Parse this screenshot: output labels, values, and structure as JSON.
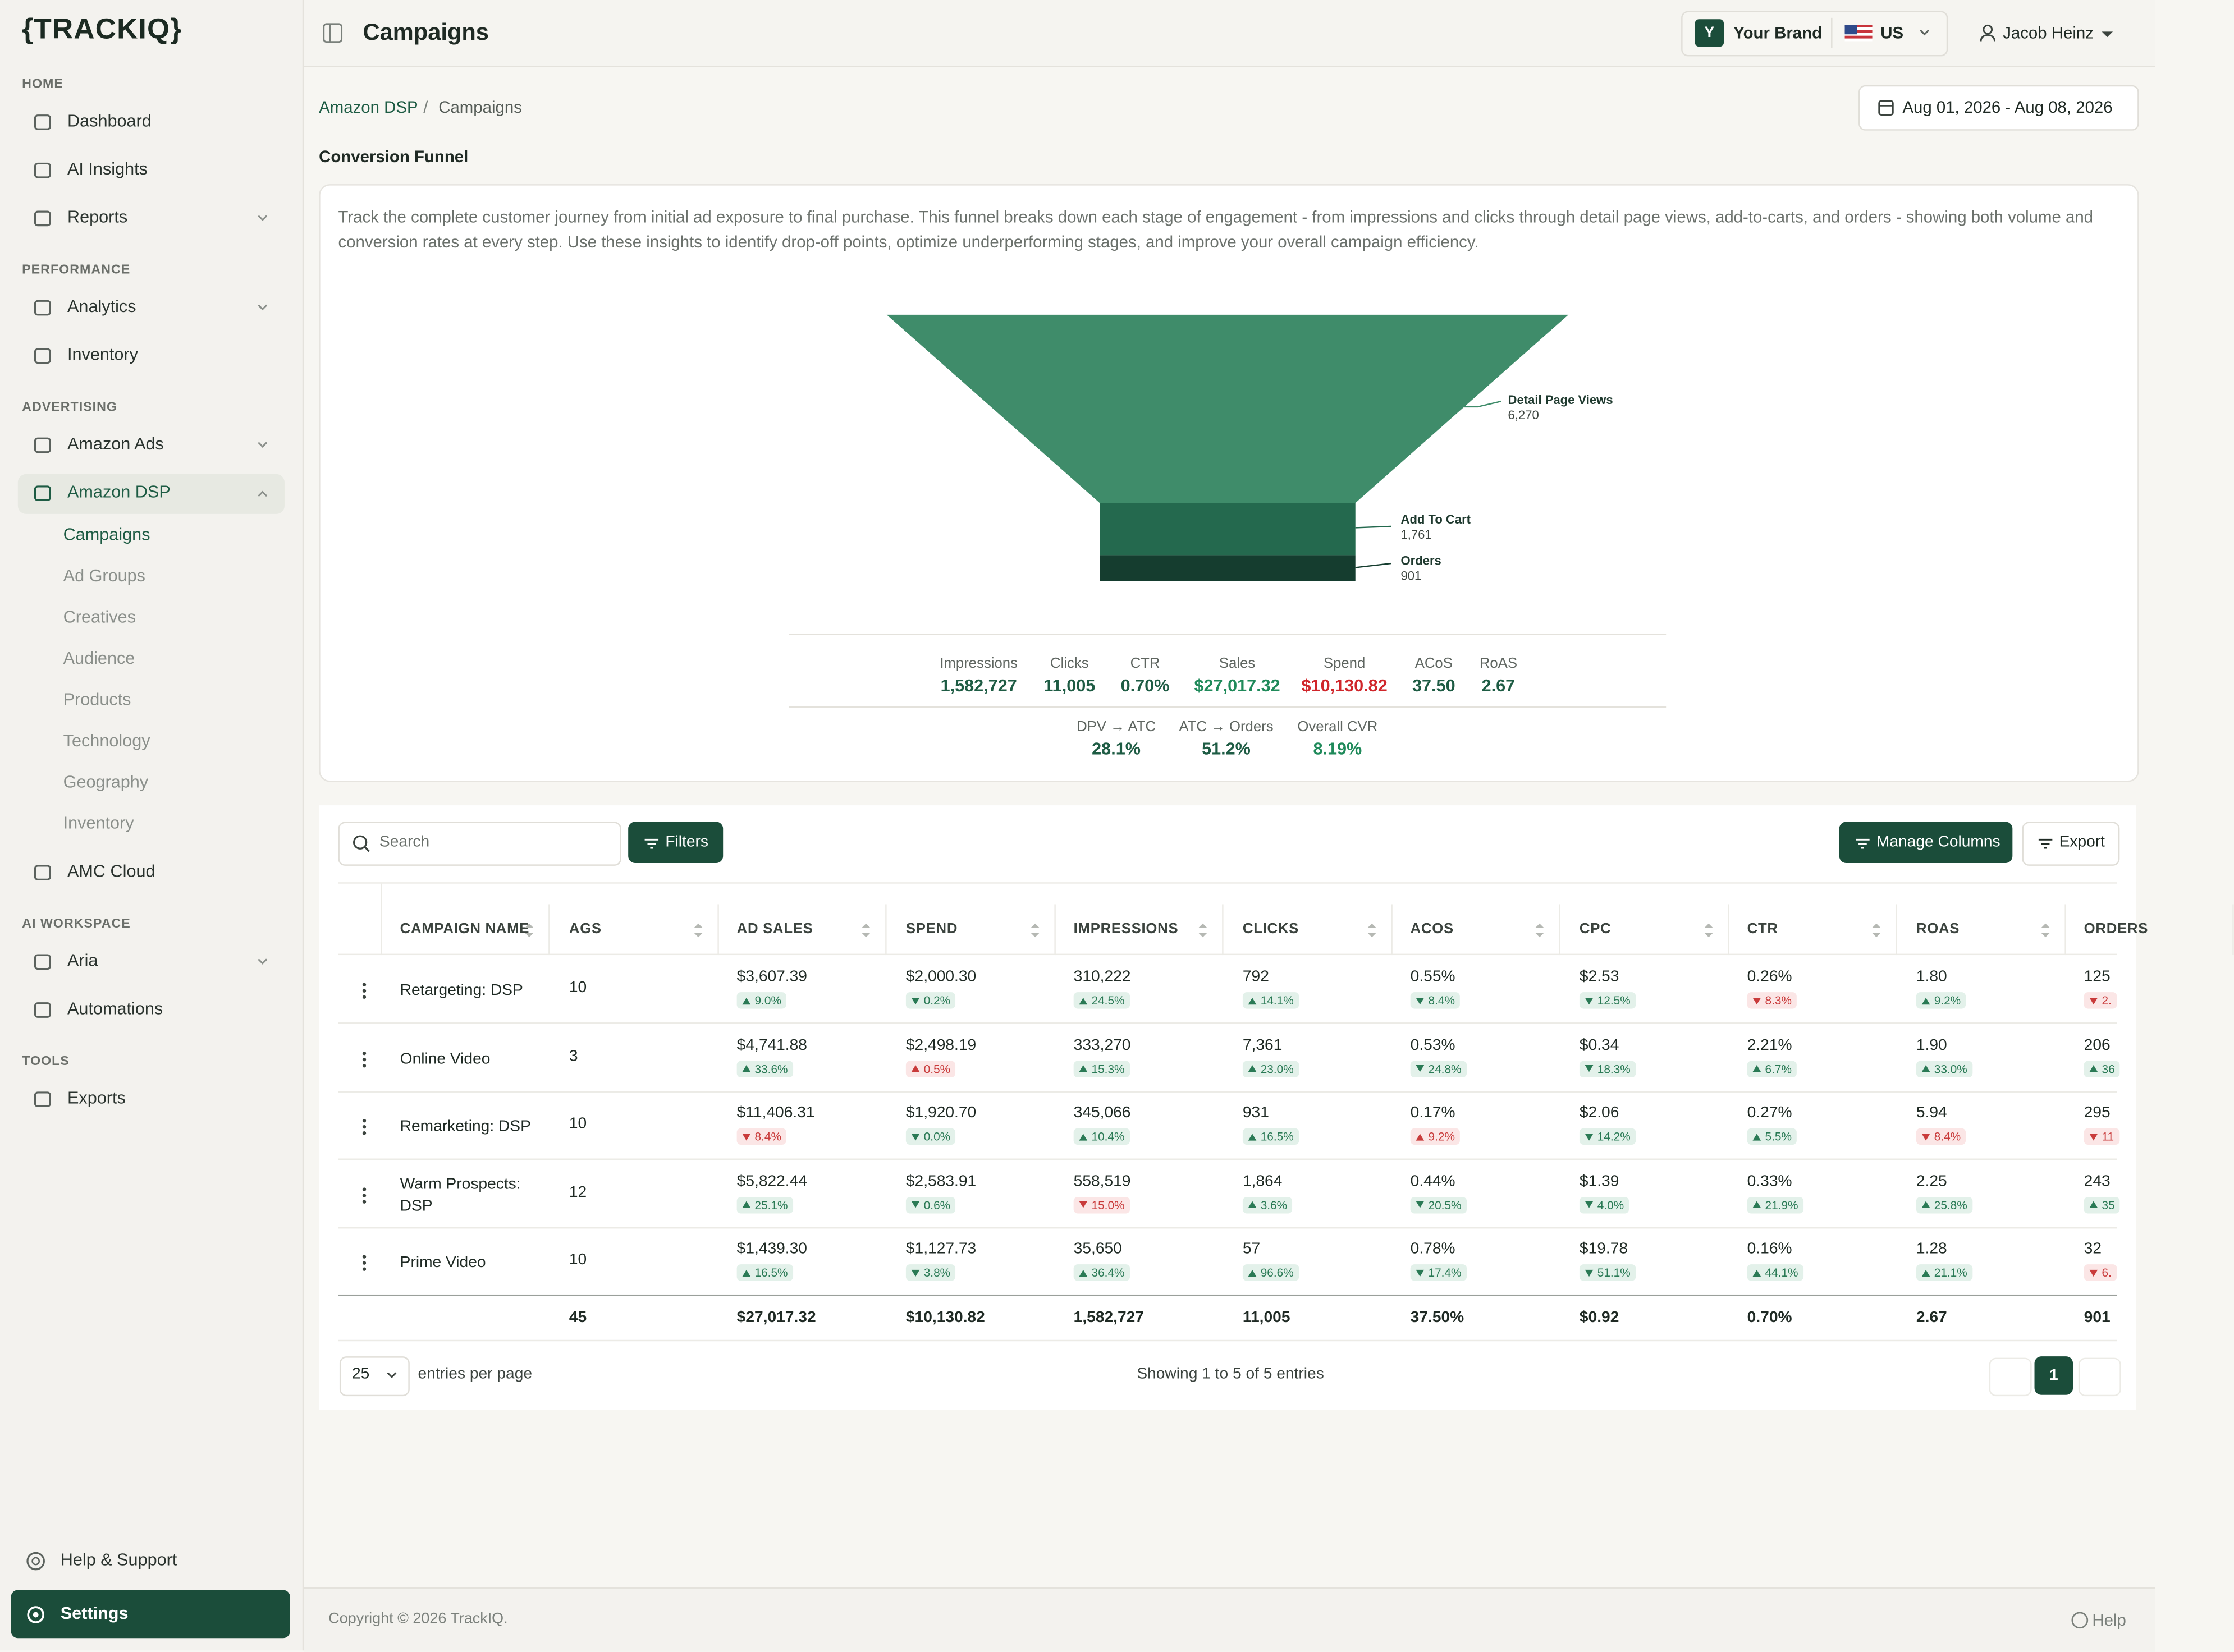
{
  "sidebar": {
    "logo": "{TRACKIQ}",
    "sections": [
      {
        "title": "HOME",
        "items": [
          {
            "label": "Dashboard"
          },
          {
            "label": "AI Insights"
          },
          {
            "label": "Reports",
            "expandable": true
          }
        ]
      },
      {
        "title": "PERFORMANCE",
        "items": [
          {
            "label": "Analytics",
            "expandable": true
          },
          {
            "label": "Inventory"
          }
        ]
      },
      {
        "title": "ADVERTISING",
        "items": [
          {
            "label": "Amazon Ads",
            "expandable": true
          },
          {
            "label": "Amazon DSP",
            "expandable": true,
            "active": true,
            "subitems": [
              "Campaigns",
              "Ad Groups",
              "Creatives",
              "Audience",
              "Products",
              "Technology",
              "Geography",
              "Inventory"
            ],
            "active_subitem": 0
          },
          {
            "label": "AMC Cloud"
          }
        ]
      },
      {
        "title": "AI WORKSPACE",
        "items": [
          {
            "label": "Aria",
            "expandable": true
          },
          {
            "label": "Automations"
          }
        ]
      },
      {
        "title": "TOOLS",
        "items": [
          {
            "label": "Exports"
          }
        ]
      }
    ],
    "help": "Help & Support",
    "settings": "Settings"
  },
  "header": {
    "title": "Campaigns",
    "brand_initial": "Y",
    "brand": "Your Brand",
    "country": "US",
    "user": "Jacob Heinz"
  },
  "breadcrumb": [
    "Amazon DSP",
    "Campaigns"
  ],
  "date_range": "Aug 01, 2026 - Aug 08, 2026",
  "funnel": {
    "title": "Conversion Funnel",
    "description": "Track the complete customer journey from initial ad exposure to final purchase. This funnel breaks down each stage of engagement - from impressions and clicks through detail page views, add-to-carts, and orders - showing both volume and conversion rates at every step. Use these insights to identify drop-off points, optimize underperforming stages, and improve your overall campaign efficiency.",
    "stages": [
      {
        "label": "Detail Page Views",
        "value": "6,270"
      },
      {
        "label": "Add To Cart",
        "value": "1,761"
      },
      {
        "label": "Orders",
        "value": "901"
      }
    ],
    "metrics": [
      {
        "label": "Impressions",
        "value": "1,582,727"
      },
      {
        "label": "Clicks",
        "value": "11,005"
      },
      {
        "label": "CTR",
        "value": "0.70%"
      },
      {
        "label": "Sales",
        "value": "$27,017.32",
        "tone": "good"
      },
      {
        "label": "Spend",
        "value": "$10,130.82",
        "tone": "bad"
      },
      {
        "label": "ACoS",
        "value": "37.50"
      },
      {
        "label": "RoAS",
        "value": "2.67"
      }
    ],
    "rates": [
      {
        "label": "DPV → ATC",
        "value": "28.1%"
      },
      {
        "label": "ATC → Orders",
        "value": "51.2%"
      },
      {
        "label": "Overall CVR",
        "value": "8.19%",
        "tone": "good"
      }
    ]
  },
  "toolbar": {
    "search_placeholder": "Search",
    "filters": "Filters",
    "manage_columns": "Manage Columns",
    "export": "Export"
  },
  "table": {
    "columns": [
      "CAMPAIGN NAME",
      "AGS",
      "AD SALES",
      "SPEND",
      "IMPRESSIONS",
      "CLICKS",
      "ACOS",
      "CPC",
      "CTR",
      "ROAS",
      "ORDERS"
    ],
    "rows": [
      {
        "name": "Retargeting: DSP",
        "ags": "10",
        "cells": [
          {
            "value": "$3,607.39",
            "change": "9.0%",
            "dir": "up",
            "tone": "good"
          },
          {
            "value": "$2,000.30",
            "change": "0.2%",
            "dir": "down",
            "tone": "good"
          },
          {
            "value": "310,222",
            "change": "24.5%",
            "dir": "up",
            "tone": "good"
          },
          {
            "value": "792",
            "change": "14.1%",
            "dir": "up",
            "tone": "good"
          },
          {
            "value": "0.55%",
            "change": "8.4%",
            "dir": "down",
            "tone": "good"
          },
          {
            "value": "$2.53",
            "change": "12.5%",
            "dir": "down",
            "tone": "good"
          },
          {
            "value": "0.26%",
            "change": "8.3%",
            "dir": "down",
            "tone": "bad"
          },
          {
            "value": "1.80",
            "change": "9.2%",
            "dir": "up",
            "tone": "good"
          },
          {
            "value": "125",
            "change": "2.",
            "dir": "down",
            "tone": "bad"
          }
        ]
      },
      {
        "name": "Online Video",
        "ags": "3",
        "cells": [
          {
            "value": "$4,741.88",
            "change": "33.6%",
            "dir": "up",
            "tone": "good"
          },
          {
            "value": "$2,498.19",
            "change": "0.5%",
            "dir": "up",
            "tone": "bad"
          },
          {
            "value": "333,270",
            "change": "15.3%",
            "dir": "up",
            "tone": "good"
          },
          {
            "value": "7,361",
            "change": "23.0%",
            "dir": "up",
            "tone": "good"
          },
          {
            "value": "0.53%",
            "change": "24.8%",
            "dir": "down",
            "tone": "good"
          },
          {
            "value": "$0.34",
            "change": "18.3%",
            "dir": "down",
            "tone": "good"
          },
          {
            "value": "2.21%",
            "change": "6.7%",
            "dir": "up",
            "tone": "good"
          },
          {
            "value": "1.90",
            "change": "33.0%",
            "dir": "up",
            "tone": "good"
          },
          {
            "value": "206",
            "change": "36",
            "dir": "up",
            "tone": "good"
          }
        ]
      },
      {
        "name": "Remarketing: DSP",
        "ags": "10",
        "cells": [
          {
            "value": "$11,406.31",
            "change": "8.4%",
            "dir": "down",
            "tone": "bad"
          },
          {
            "value": "$1,920.70",
            "change": "0.0%",
            "dir": "down",
            "tone": "good"
          },
          {
            "value": "345,066",
            "change": "10.4%",
            "dir": "up",
            "tone": "good"
          },
          {
            "value": "931",
            "change": "16.5%",
            "dir": "up",
            "tone": "good"
          },
          {
            "value": "0.17%",
            "change": "9.2%",
            "dir": "up",
            "tone": "bad"
          },
          {
            "value": "$2.06",
            "change": "14.2%",
            "dir": "down",
            "tone": "good"
          },
          {
            "value": "0.27%",
            "change": "5.5%",
            "dir": "up",
            "tone": "good"
          },
          {
            "value": "5.94",
            "change": "8.4%",
            "dir": "down",
            "tone": "bad"
          },
          {
            "value": "295",
            "change": "11",
            "dir": "down",
            "tone": "bad"
          }
        ]
      },
      {
        "name": "Warm Prospects: DSP",
        "ags": "12",
        "cells": [
          {
            "value": "$5,822.44",
            "change": "25.1%",
            "dir": "up",
            "tone": "good"
          },
          {
            "value": "$2,583.91",
            "change": "0.6%",
            "dir": "down",
            "tone": "good"
          },
          {
            "value": "558,519",
            "change": "15.0%",
            "dir": "down",
            "tone": "bad"
          },
          {
            "value": "1,864",
            "change": "3.6%",
            "dir": "up",
            "tone": "good"
          },
          {
            "value": "0.44%",
            "change": "20.5%",
            "dir": "down",
            "tone": "good"
          },
          {
            "value": "$1.39",
            "change": "4.0%",
            "dir": "down",
            "tone": "good"
          },
          {
            "value": "0.33%",
            "change": "21.9%",
            "dir": "up",
            "tone": "good"
          },
          {
            "value": "2.25",
            "change": "25.8%",
            "dir": "up",
            "tone": "good"
          },
          {
            "value": "243",
            "change": "35",
            "dir": "up",
            "tone": "good"
          }
        ]
      },
      {
        "name": "Prime Video",
        "ags": "10",
        "cells": [
          {
            "value": "$1,439.30",
            "change": "16.5%",
            "dir": "up",
            "tone": "good"
          },
          {
            "value": "$1,127.73",
            "change": "3.8%",
            "dir": "down",
            "tone": "good"
          },
          {
            "value": "35,650",
            "change": "36.4%",
            "dir": "up",
            "tone": "good"
          },
          {
            "value": "57",
            "change": "96.6%",
            "dir": "up",
            "tone": "good"
          },
          {
            "value": "0.78%",
            "change": "17.4%",
            "dir": "down",
            "tone": "good"
          },
          {
            "value": "$19.78",
            "change": "51.1%",
            "dir": "down",
            "tone": "good"
          },
          {
            "value": "0.16%",
            "change": "44.1%",
            "dir": "up",
            "tone": "good"
          },
          {
            "value": "1.28",
            "change": "21.1%",
            "dir": "up",
            "tone": "good"
          },
          {
            "value": "32",
            "change": "6.",
            "dir": "down",
            "tone": "bad"
          }
        ]
      }
    ],
    "totals": [
      "45",
      "$27,017.32",
      "$10,130.82",
      "1,582,727",
      "11,005",
      "37.50%",
      "$0.92",
      "0.70%",
      "2.67",
      "901"
    ]
  },
  "pagination": {
    "page_size": "25",
    "page_size_label": "entries per page",
    "summary": "Showing 1 to 5 of 5 entries",
    "page": "1"
  },
  "footer": {
    "copyright": "Copyright © 2026 TrackIQ.",
    "help": "Help"
  }
}
